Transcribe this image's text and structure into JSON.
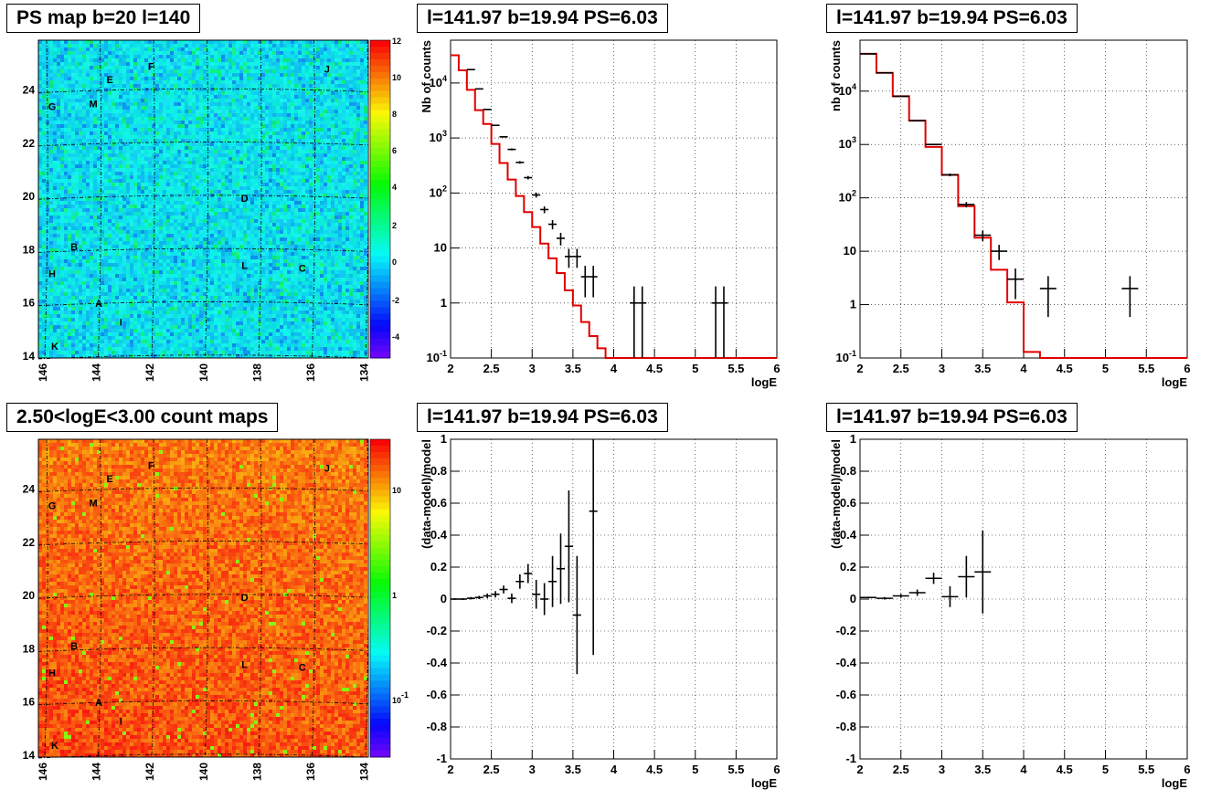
{
  "titles": {
    "ps_map": "PS map b=20 l=140",
    "count_map": "2.50<logE<3.00 count maps",
    "spec1": "l=141.97 b=19.94 PS=6.03",
    "spec2": "l=141.97 b=19.94 PS=6.03",
    "res1": "l=141.97 b=19.94 PS=6.03",
    "res2": "l=141.97 b=19.94 PS=6.03"
  },
  "chart_data": [
    {
      "type": "heatmap",
      "title": "PS map b=20 l=140",
      "x_ticks": [
        "146",
        "144",
        "142",
        "140",
        "138",
        "136",
        "134"
      ],
      "y_ticks": [
        "14",
        "16",
        "18",
        "20",
        "22",
        "24"
      ],
      "colorbar_ticks": [
        "12",
        "10",
        "8",
        "6",
        "4",
        "2",
        "0",
        "-2",
        "-4"
      ],
      "source_labels": [
        {
          "label": "E",
          "l": 143.7,
          "b": 24.2
        },
        {
          "label": "F",
          "l": 142.2,
          "b": 24.7
        },
        {
          "label": "J",
          "l": 135.8,
          "b": 24.6
        },
        {
          "label": "G",
          "l": 145.8,
          "b": 23.2
        },
        {
          "label": "M",
          "l": 144.3,
          "b": 23.3
        },
        {
          "label": "D",
          "l": 138.8,
          "b": 19.8
        },
        {
          "label": "B",
          "l": 145.0,
          "b": 18.0
        },
        {
          "label": "H",
          "l": 145.8,
          "b": 17.0
        },
        {
          "label": "L",
          "l": 138.8,
          "b": 17.3
        },
        {
          "label": "C",
          "l": 136.7,
          "b": 17.2
        },
        {
          "label": "A",
          "l": 144.1,
          "b": 15.9
        },
        {
          "label": "I",
          "l": 143.3,
          "b": 15.2
        },
        {
          "label": "K",
          "l": 145.7,
          "b": 14.3
        }
      ]
    },
    {
      "type": "heatmap",
      "title": "2.50<logE<3.00 count maps",
      "x_ticks": [
        "146",
        "144",
        "142",
        "140",
        "138",
        "136",
        "134"
      ],
      "y_ticks": [
        "14",
        "16",
        "18",
        "20",
        "22",
        "24"
      ],
      "colorbar_ticks": [
        "10",
        "1",
        "10^-1"
      ],
      "source_labels": [
        {
          "label": "E",
          "l": 143.7,
          "b": 24.2
        },
        {
          "label": "F",
          "l": 142.2,
          "b": 24.7
        },
        {
          "label": "J",
          "l": 135.8,
          "b": 24.6
        },
        {
          "label": "G",
          "l": 145.8,
          "b": 23.2
        },
        {
          "label": "M",
          "l": 144.3,
          "b": 23.3
        },
        {
          "label": "D",
          "l": 138.8,
          "b": 19.8
        },
        {
          "label": "B",
          "l": 145.0,
          "b": 18.0
        },
        {
          "label": "H",
          "l": 145.8,
          "b": 17.0
        },
        {
          "label": "L",
          "l": 138.8,
          "b": 17.3
        },
        {
          "label": "C",
          "l": 136.7,
          "b": 17.2
        },
        {
          "label": "A",
          "l": 144.1,
          "b": 15.9
        },
        {
          "label": "I",
          "l": 143.3,
          "b": 15.2
        },
        {
          "label": "K",
          "l": 145.7,
          "b": 14.3
        }
      ]
    },
    {
      "type": "line",
      "title": "l=141.97 b=19.94 PS=6.03",
      "xlabel": "logE",
      "ylabel": "Nb of counts",
      "xlim": [
        2,
        6
      ],
      "ylim": [
        0.1,
        60000
      ],
      "log_y": true,
      "grid": true,
      "x_ticks": [
        "2",
        "2.5",
        "3",
        "3.5",
        "4",
        "4.5",
        "5",
        "5.5",
        "6"
      ],
      "y_ticks": [
        "10^-1",
        "1",
        "10",
        "10^2",
        "10^3",
        "10^4"
      ],
      "model_hist": {
        "bin_width": 0.1,
        "x_start": 2.0,
        "values": [
          32000,
          17000,
          7500,
          3200,
          1800,
          780,
          350,
          175,
          88,
          45,
          24,
          12,
          6.5,
          3.5,
          1.7,
          0.9,
          0.45,
          0.25,
          0.15,
          0.1,
          0.1,
          0.1,
          0.1,
          0.1,
          0.1,
          0.1,
          0.1,
          0.1,
          0.1,
          0.1,
          0.1,
          0.1,
          0.1,
          0.1,
          0.1,
          0.1,
          0.1,
          0.1,
          0.1,
          0.1
        ]
      },
      "data_points": [
        {
          "x": 2.25,
          "y": 17500
        },
        {
          "x": 2.35,
          "y": 7800
        },
        {
          "x": 2.45,
          "y": 3300
        },
        {
          "x": 2.55,
          "y": 1700
        },
        {
          "x": 2.65,
          "y": 1050
        },
        {
          "x": 2.75,
          "y": 620
        },
        {
          "x": 2.85,
          "y": 360
        },
        {
          "x": 2.95,
          "y": 190
        },
        {
          "x": 3.05,
          "y": 92
        },
        {
          "x": 3.15,
          "y": 50
        },
        {
          "x": 3.25,
          "y": 27
        },
        {
          "x": 3.35,
          "y": 15
        },
        {
          "x": 3.45,
          "y": 7
        },
        {
          "x": 3.55,
          "y": 7
        },
        {
          "x": 3.65,
          "y": 3
        },
        {
          "x": 3.75,
          "y": 3
        },
        {
          "x": 4.25,
          "y": 1
        },
        {
          "x": 4.35,
          "y": 1
        },
        {
          "x": 5.25,
          "y": 1
        },
        {
          "x": 5.35,
          "y": 1
        }
      ]
    },
    {
      "type": "line",
      "title": "l=141.97 b=19.94 PS=6.03",
      "xlabel": "logE",
      "ylabel": "nb of counts",
      "xlim": [
        2,
        6
      ],
      "ylim": [
        0.1,
        90000
      ],
      "log_y": true,
      "grid": true,
      "x_ticks": [
        "2",
        "2.5",
        "3",
        "3.5",
        "4",
        "4.5",
        "5",
        "5.5",
        "6"
      ],
      "y_ticks": [
        "10^-1",
        "1",
        "10",
        "10^2",
        "10^3",
        "10^4"
      ],
      "model_hist": {
        "bin_width": 0.2,
        "x_start": 2.0,
        "values": [
          50000,
          22000,
          8000,
          2800,
          900,
          270,
          70,
          18,
          4.5,
          1.1,
          0.13,
          0.1,
          0.1,
          0.1,
          0.1,
          0.1,
          0.1,
          0.1,
          0.1,
          0.1
        ]
      },
      "data_points": [
        {
          "x": 2.1,
          "y": 50000
        },
        {
          "x": 2.3,
          "y": 22000
        },
        {
          "x": 2.5,
          "y": 8000
        },
        {
          "x": 2.7,
          "y": 2800
        },
        {
          "x": 2.9,
          "y": 1000
        },
        {
          "x": 3.1,
          "y": 270
        },
        {
          "x": 3.3,
          "y": 75
        },
        {
          "x": 3.5,
          "y": 20
        },
        {
          "x": 3.7,
          "y": 10
        },
        {
          "x": 3.9,
          "y": 3
        },
        {
          "x": 4.3,
          "y": 2
        },
        {
          "x": 5.3,
          "y": 2
        }
      ]
    },
    {
      "type": "scatter",
      "title": "l=141.97 b=19.94 PS=6.03",
      "xlabel": "logE",
      "ylabel": "(data-model)/model",
      "xlim": [
        2,
        6
      ],
      "ylim": [
        -1,
        1
      ],
      "grid": true,
      "x_ticks": [
        "2",
        "2.5",
        "3",
        "3.5",
        "4",
        "4.5",
        "5",
        "5.5",
        "6"
      ],
      "y_ticks": [
        "-1",
        "-0.8",
        "-0.6",
        "-0.4",
        "-0.2",
        "0",
        "0.2",
        "0.4",
        "0.6",
        "0.8",
        "1"
      ],
      "points": [
        {
          "x": 2.05,
          "y": 0.0,
          "err": 0.005
        },
        {
          "x": 2.15,
          "y": 0.0,
          "err": 0.006
        },
        {
          "x": 2.25,
          "y": 0.005,
          "err": 0.008
        },
        {
          "x": 2.35,
          "y": 0.01,
          "err": 0.01
        },
        {
          "x": 2.45,
          "y": 0.02,
          "err": 0.015
        },
        {
          "x": 2.55,
          "y": 0.03,
          "err": 0.02
        },
        {
          "x": 2.65,
          "y": 0.06,
          "err": 0.025
        },
        {
          "x": 2.75,
          "y": 0.005,
          "err": 0.03
        },
        {
          "x": 2.85,
          "y": 0.11,
          "err": 0.045
        },
        {
          "x": 2.95,
          "y": 0.16,
          "err": 0.06
        },
        {
          "x": 3.05,
          "y": 0.03,
          "err": 0.09
        },
        {
          "x": 3.15,
          "y": 0.0,
          "err": 0.1
        },
        {
          "x": 3.25,
          "y": 0.11,
          "err": 0.16
        },
        {
          "x": 3.35,
          "y": 0.19,
          "err": 0.22
        },
        {
          "x": 3.45,
          "y": 0.33,
          "err": 0.35
        },
        {
          "x": 3.55,
          "y": -0.1,
          "err": 0.37
        },
        {
          "x": 3.75,
          "y": 0.55,
          "err": 0.9
        }
      ]
    },
    {
      "type": "scatter",
      "title": "l=141.97 b=19.94 PS=6.03",
      "xlabel": "logE",
      "ylabel": "(data-model)/model",
      "xlim": [
        2,
        6
      ],
      "ylim": [
        -1,
        1
      ],
      "grid": true,
      "x_ticks": [
        "2",
        "2.5",
        "3",
        "3.5",
        "4",
        "4.5",
        "5",
        "5.5",
        "6"
      ],
      "y_ticks": [
        "-1",
        "-0.8",
        "-0.6",
        "-0.4",
        "-0.2",
        "0",
        "0.2",
        "0.4",
        "0.6",
        "0.8",
        "1"
      ],
      "points": [
        {
          "x": 2.1,
          "y": 0.01,
          "err": 0.005
        },
        {
          "x": 2.3,
          "y": 0.005,
          "err": 0.008
        },
        {
          "x": 2.5,
          "y": 0.02,
          "err": 0.012
        },
        {
          "x": 2.7,
          "y": 0.04,
          "err": 0.02
        },
        {
          "x": 2.9,
          "y": 0.13,
          "err": 0.035
        },
        {
          "x": 3.1,
          "y": 0.015,
          "err": 0.065
        },
        {
          "x": 3.3,
          "y": 0.14,
          "err": 0.13
        },
        {
          "x": 3.5,
          "y": 0.17,
          "err": 0.26
        }
      ]
    }
  ]
}
